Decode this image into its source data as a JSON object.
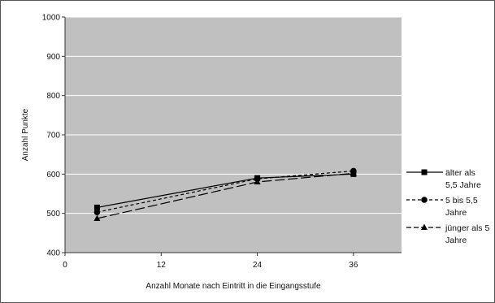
{
  "chart_data": {
    "type": "line",
    "title": "",
    "xlabel": "Anzahl Monate nach Eintritt in die Eingangsstufe",
    "ylabel": "Anzahl Punkte",
    "xlim": [
      0,
      42
    ],
    "ylim": [
      400,
      1000
    ],
    "xticks": [
      0,
      12,
      24,
      36
    ],
    "yticks": [
      400,
      500,
      600,
      700,
      800,
      900,
      1000
    ],
    "grid": true,
    "legend_position": "right",
    "background_color": "#c0c0c0",
    "series": [
      {
        "name": "älter als 5,5 Jahre",
        "name_lines": [
          "älter als",
          "5,5 Jahre"
        ],
        "marker": "square",
        "dash": "solid",
        "x": [
          4,
          24,
          36
        ],
        "y": [
          515,
          590,
          600
        ]
      },
      {
        "name": "5 bis 5,5 Jahre",
        "name_lines": [
          "5 bis 5,5",
          "Jahre"
        ],
        "marker": "circle",
        "dash": "short-dash",
        "x": [
          4,
          24,
          36
        ],
        "y": [
          503,
          588,
          608
        ]
      },
      {
        "name": "jünger als 5 Jahre",
        "name_lines": [
          "jünger als 5",
          "Jahre"
        ],
        "marker": "triangle",
        "dash": "long-dash",
        "x": [
          4,
          24,
          36
        ],
        "y": [
          487,
          580,
          602
        ]
      }
    ]
  }
}
